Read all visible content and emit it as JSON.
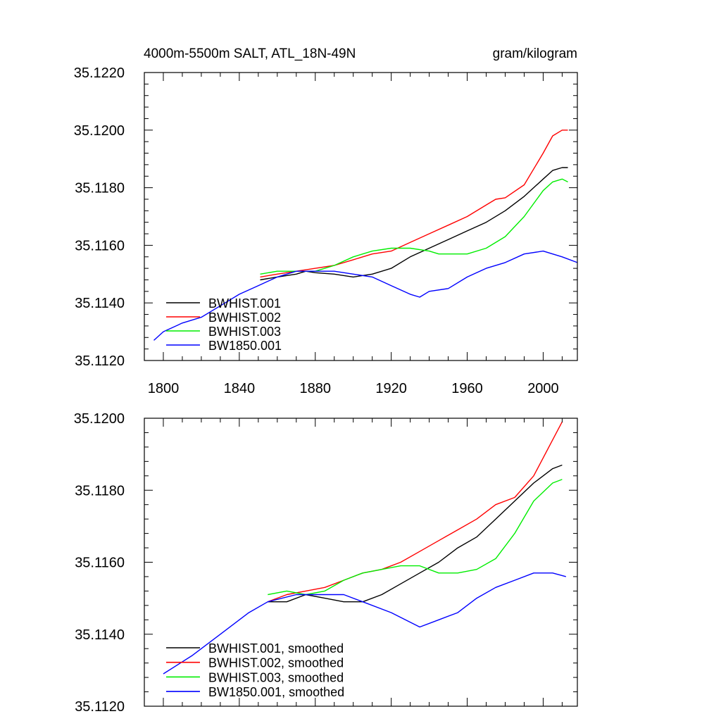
{
  "chart_data": [
    {
      "type": "line",
      "title_left": "4000m-5500m SALT, ATL_18N-49N",
      "title_right": "gram/kilogram",
      "xlim": [
        1790,
        2018
      ],
      "ylim": [
        35.112,
        35.122
      ],
      "x_ticks": [
        1800,
        1840,
        1880,
        1920,
        1960,
        2000
      ],
      "y_ticks": [
        35.112,
        35.114,
        35.116,
        35.118,
        35.12,
        35.122
      ],
      "y_tick_labels": [
        "35.1120",
        "35.1140",
        "35.1160",
        "35.1180",
        "35.1200",
        "35.1220"
      ],
      "legend": {
        "position": "bottom-left",
        "entries": [
          "BWHIST.001",
          "BWHIST.002",
          "BWHIST.003",
          "BW1850.001"
        ]
      },
      "series": [
        {
          "name": "BWHIST.001",
          "color": "#000000",
          "x": [
            1851,
            1860,
            1870,
            1875,
            1880,
            1890,
            1900,
            1910,
            1920,
            1930,
            1940,
            1950,
            1960,
            1970,
            1980,
            1990,
            2000,
            2005,
            2010,
            2013
          ],
          "y": [
            35.1148,
            35.1149,
            35.115,
            35.1151,
            35.11505,
            35.115,
            35.1149,
            35.115,
            35.1152,
            35.1156,
            35.1159,
            35.1162,
            35.1165,
            35.1168,
            35.1172,
            35.1177,
            35.1183,
            35.1186,
            35.1187,
            35.1187
          ]
        },
        {
          "name": "BWHIST.002",
          "color": "#ff0000",
          "x": [
            1851,
            1860,
            1870,
            1880,
            1890,
            1900,
            1910,
            1920,
            1930,
            1940,
            1950,
            1960,
            1970,
            1975,
            1980,
            1990,
            2000,
            2005,
            2010,
            2013
          ],
          "y": [
            35.1149,
            35.115,
            35.1151,
            35.1152,
            35.1153,
            35.1155,
            35.1157,
            35.1158,
            35.1161,
            35.1164,
            35.1167,
            35.117,
            35.1174,
            35.1176,
            35.11765,
            35.1181,
            35.1192,
            35.1198,
            35.12,
            35.12
          ]
        },
        {
          "name": "BWHIST.003",
          "color": "#00ee00",
          "x": [
            1851,
            1860,
            1870,
            1880,
            1890,
            1900,
            1910,
            1920,
            1930,
            1940,
            1945,
            1950,
            1960,
            1970,
            1980,
            1990,
            2000,
            2005,
            2010,
            2013
          ],
          "y": [
            35.115,
            35.1151,
            35.1151,
            35.1151,
            35.1153,
            35.1156,
            35.1158,
            35.1159,
            35.1159,
            35.1158,
            35.1157,
            35.1157,
            35.1157,
            35.1159,
            35.1163,
            35.117,
            35.1179,
            35.1182,
            35.1183,
            35.1182
          ]
        },
        {
          "name": "BW1850.001",
          "color": "#0000ff",
          "x": [
            1795,
            1800,
            1810,
            1820,
            1830,
            1840,
            1850,
            1860,
            1870,
            1880,
            1890,
            1900,
            1910,
            1920,
            1930,
            1935,
            1940,
            1950,
            1960,
            1970,
            1980,
            1990,
            2000,
            2010,
            2018
          ],
          "y": [
            35.1127,
            35.113,
            35.1133,
            35.1135,
            35.1139,
            35.1143,
            35.1146,
            35.1149,
            35.1151,
            35.1151,
            35.1151,
            35.115,
            35.1149,
            35.1146,
            35.1143,
            35.1142,
            35.1144,
            35.1145,
            35.1149,
            35.1152,
            35.1154,
            35.1157,
            35.1158,
            35.1156,
            35.1154
          ]
        }
      ]
    },
    {
      "type": "line",
      "xlim": [
        1790,
        2018
      ],
      "ylim": [
        35.112,
        35.12
      ],
      "x_ticks": [
        1800,
        1840,
        1880,
        1920,
        1960,
        2000
      ],
      "y_ticks": [
        35.112,
        35.114,
        35.116,
        35.118,
        35.12
      ],
      "y_tick_labels": [
        "35.1120",
        "35.1140",
        "35.1160",
        "35.1180",
        "35.1200"
      ],
      "legend": {
        "position": "bottom-left",
        "entries": [
          "BWHIST.001, smoothed",
          "BWHIST.002, smoothed",
          "BWHIST.003, smoothed",
          "BW1850.001, smoothed"
        ]
      },
      "series": [
        {
          "name": "BWHIST.001, smoothed",
          "color": "#000000",
          "x": [
            1855,
            1865,
            1875,
            1885,
            1895,
            1905,
            1915,
            1925,
            1935,
            1945,
            1955,
            1965,
            1975,
            1985,
            1995,
            2005,
            2010
          ],
          "y": [
            35.1149,
            35.1149,
            35.1151,
            35.115,
            35.1149,
            35.1149,
            35.1151,
            35.1154,
            35.1157,
            35.116,
            35.1164,
            35.1167,
            35.1172,
            35.1177,
            35.1182,
            35.1186,
            35.1187
          ]
        },
        {
          "name": "BWHIST.002, smoothed",
          "color": "#ff0000",
          "x": [
            1855,
            1865,
            1875,
            1885,
            1895,
            1905,
            1915,
            1925,
            1935,
            1945,
            1955,
            1965,
            1975,
            1985,
            1995,
            2005,
            2010
          ],
          "y": [
            35.1149,
            35.1151,
            35.1152,
            35.1153,
            35.1155,
            35.1157,
            35.1158,
            35.116,
            35.1163,
            35.1166,
            35.1169,
            35.1172,
            35.1176,
            35.1178,
            35.1184,
            35.1194,
            35.1199
          ]
        },
        {
          "name": "BWHIST.003, smoothed",
          "color": "#00ee00",
          "x": [
            1855,
            1865,
            1875,
            1885,
            1895,
            1905,
            1915,
            1925,
            1935,
            1945,
            1955,
            1965,
            1975,
            1985,
            1995,
            2005,
            2010
          ],
          "y": [
            35.1151,
            35.1152,
            35.1151,
            35.1152,
            35.1155,
            35.1157,
            35.1158,
            35.1159,
            35.1159,
            35.1157,
            35.1157,
            35.1158,
            35.1161,
            35.1168,
            35.1177,
            35.1182,
            35.1183
          ]
        },
        {
          "name": "BW1850.001, smoothed",
          "color": "#0000ff",
          "x": [
            1800,
            1815,
            1830,
            1845,
            1855,
            1870,
            1885,
            1895,
            1905,
            1920,
            1935,
            1945,
            1955,
            1965,
            1975,
            1985,
            1995,
            2005,
            2012
          ],
          "y": [
            35.1129,
            35.1134,
            35.114,
            35.1146,
            35.1149,
            35.1151,
            35.1151,
            35.1151,
            35.1149,
            35.1146,
            35.1142,
            35.1144,
            35.1146,
            35.115,
            35.1153,
            35.1155,
            35.1157,
            35.1157,
            35.1156
          ]
        }
      ]
    }
  ]
}
